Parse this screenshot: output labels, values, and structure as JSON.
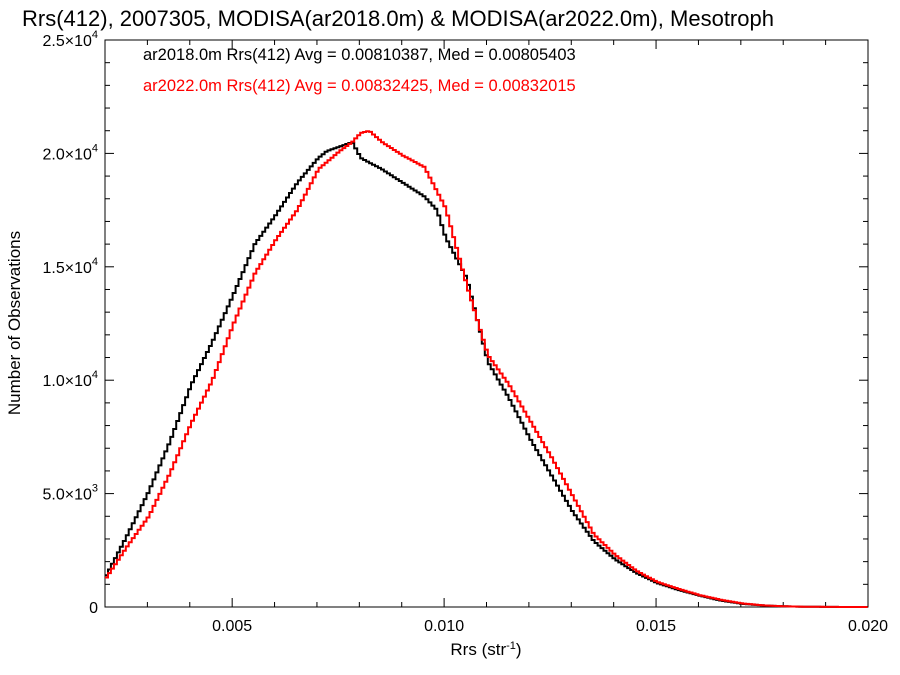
{
  "chart_data": {
    "type": "line",
    "title": "Rrs(412), 2007305, MODISA(ar2018.0m) & MODISA(ar2022.0m), Mesotroph",
    "xlabel": "Rrs (str",
    "xlabel_sup": "-1",
    "xlabel_tail": ")",
    "ylabel": "Number of Observations",
    "xlim": [
      0.002,
      0.02
    ],
    "ylim": [
      0,
      25000
    ],
    "x_ticks": [
      {
        "value": 0.005,
        "label": "0.005"
      },
      {
        "value": 0.01,
        "label": "0.010"
      },
      {
        "value": 0.015,
        "label": "0.015"
      },
      {
        "value": 0.02,
        "label": "0.020"
      }
    ],
    "y_ticks": [
      {
        "value": 0,
        "base": "0",
        "exp": ""
      },
      {
        "value": 5000,
        "base": "5.0×10",
        "exp": "3"
      },
      {
        "value": 10000,
        "base": "1.0×10",
        "exp": "4"
      },
      {
        "value": 15000,
        "base": "1.5×10",
        "exp": "4"
      },
      {
        "value": 20000,
        "base": "2.0×10",
        "exp": "4"
      },
      {
        "value": 25000,
        "base": "2.5×10",
        "exp": "4"
      }
    ],
    "grid": false,
    "legend_position": "top-left",
    "legend": [
      {
        "text": "ar2018.0m Rrs(412) Avg = 0.00810387, Med = 0.00805403",
        "color": "#000000"
      },
      {
        "text": "ar2022.0m Rrs(412) Avg = 0.00832425, Med = 0.00832015",
        "color": "#ff0000"
      }
    ],
    "series": [
      {
        "color": "#000000",
        "x": [
          0.002,
          0.0025,
          0.003,
          0.0035,
          0.004,
          0.0045,
          0.005,
          0.0055,
          0.006,
          0.0065,
          0.007,
          0.0072,
          0.0075,
          0.0078,
          0.008,
          0.0085,
          0.009,
          0.0095,
          0.0098,
          0.01,
          0.0105,
          0.011,
          0.0115,
          0.012,
          0.0125,
          0.013,
          0.0135,
          0.014,
          0.0145,
          0.015,
          0.0155,
          0.016,
          0.0165,
          0.017,
          0.0175,
          0.018,
          0.0185,
          0.019,
          0.0195,
          0.02
        ],
        "y": [
          1400,
          3200,
          5100,
          7300,
          9800,
          11700,
          13800,
          16000,
          17300,
          18700,
          19800,
          20100,
          20300,
          20500,
          19800,
          19300,
          18700,
          18100,
          17500,
          16300,
          14500,
          10800,
          9200,
          7400,
          5800,
          4200,
          2900,
          2100,
          1500,
          1050,
          750,
          500,
          280,
          140,
          70,
          30,
          10,
          5,
          0,
          0
        ]
      },
      {
        "color": "#ff0000",
        "x": [
          0.002,
          0.0025,
          0.003,
          0.0035,
          0.004,
          0.0045,
          0.005,
          0.0055,
          0.006,
          0.0065,
          0.007,
          0.0075,
          0.0078,
          0.008,
          0.0082,
          0.0085,
          0.009,
          0.0095,
          0.01,
          0.0105,
          0.011,
          0.0115,
          0.012,
          0.0125,
          0.013,
          0.0135,
          0.014,
          0.0145,
          0.015,
          0.0155,
          0.016,
          0.0165,
          0.017,
          0.0175,
          0.018,
          0.0185,
          0.019,
          0.0195,
          0.02
        ],
        "y": [
          1300,
          2700,
          4000,
          5900,
          8100,
          10000,
          12500,
          14700,
          16200,
          17500,
          19300,
          20100,
          20500,
          20900,
          21000,
          20500,
          19900,
          19400,
          17600,
          14200,
          11100,
          9800,
          8200,
          6600,
          4900,
          3200,
          2300,
          1600,
          1100,
          800,
          520,
          320,
          160,
          70,
          30,
          12,
          5,
          0,
          0
        ]
      }
    ]
  }
}
